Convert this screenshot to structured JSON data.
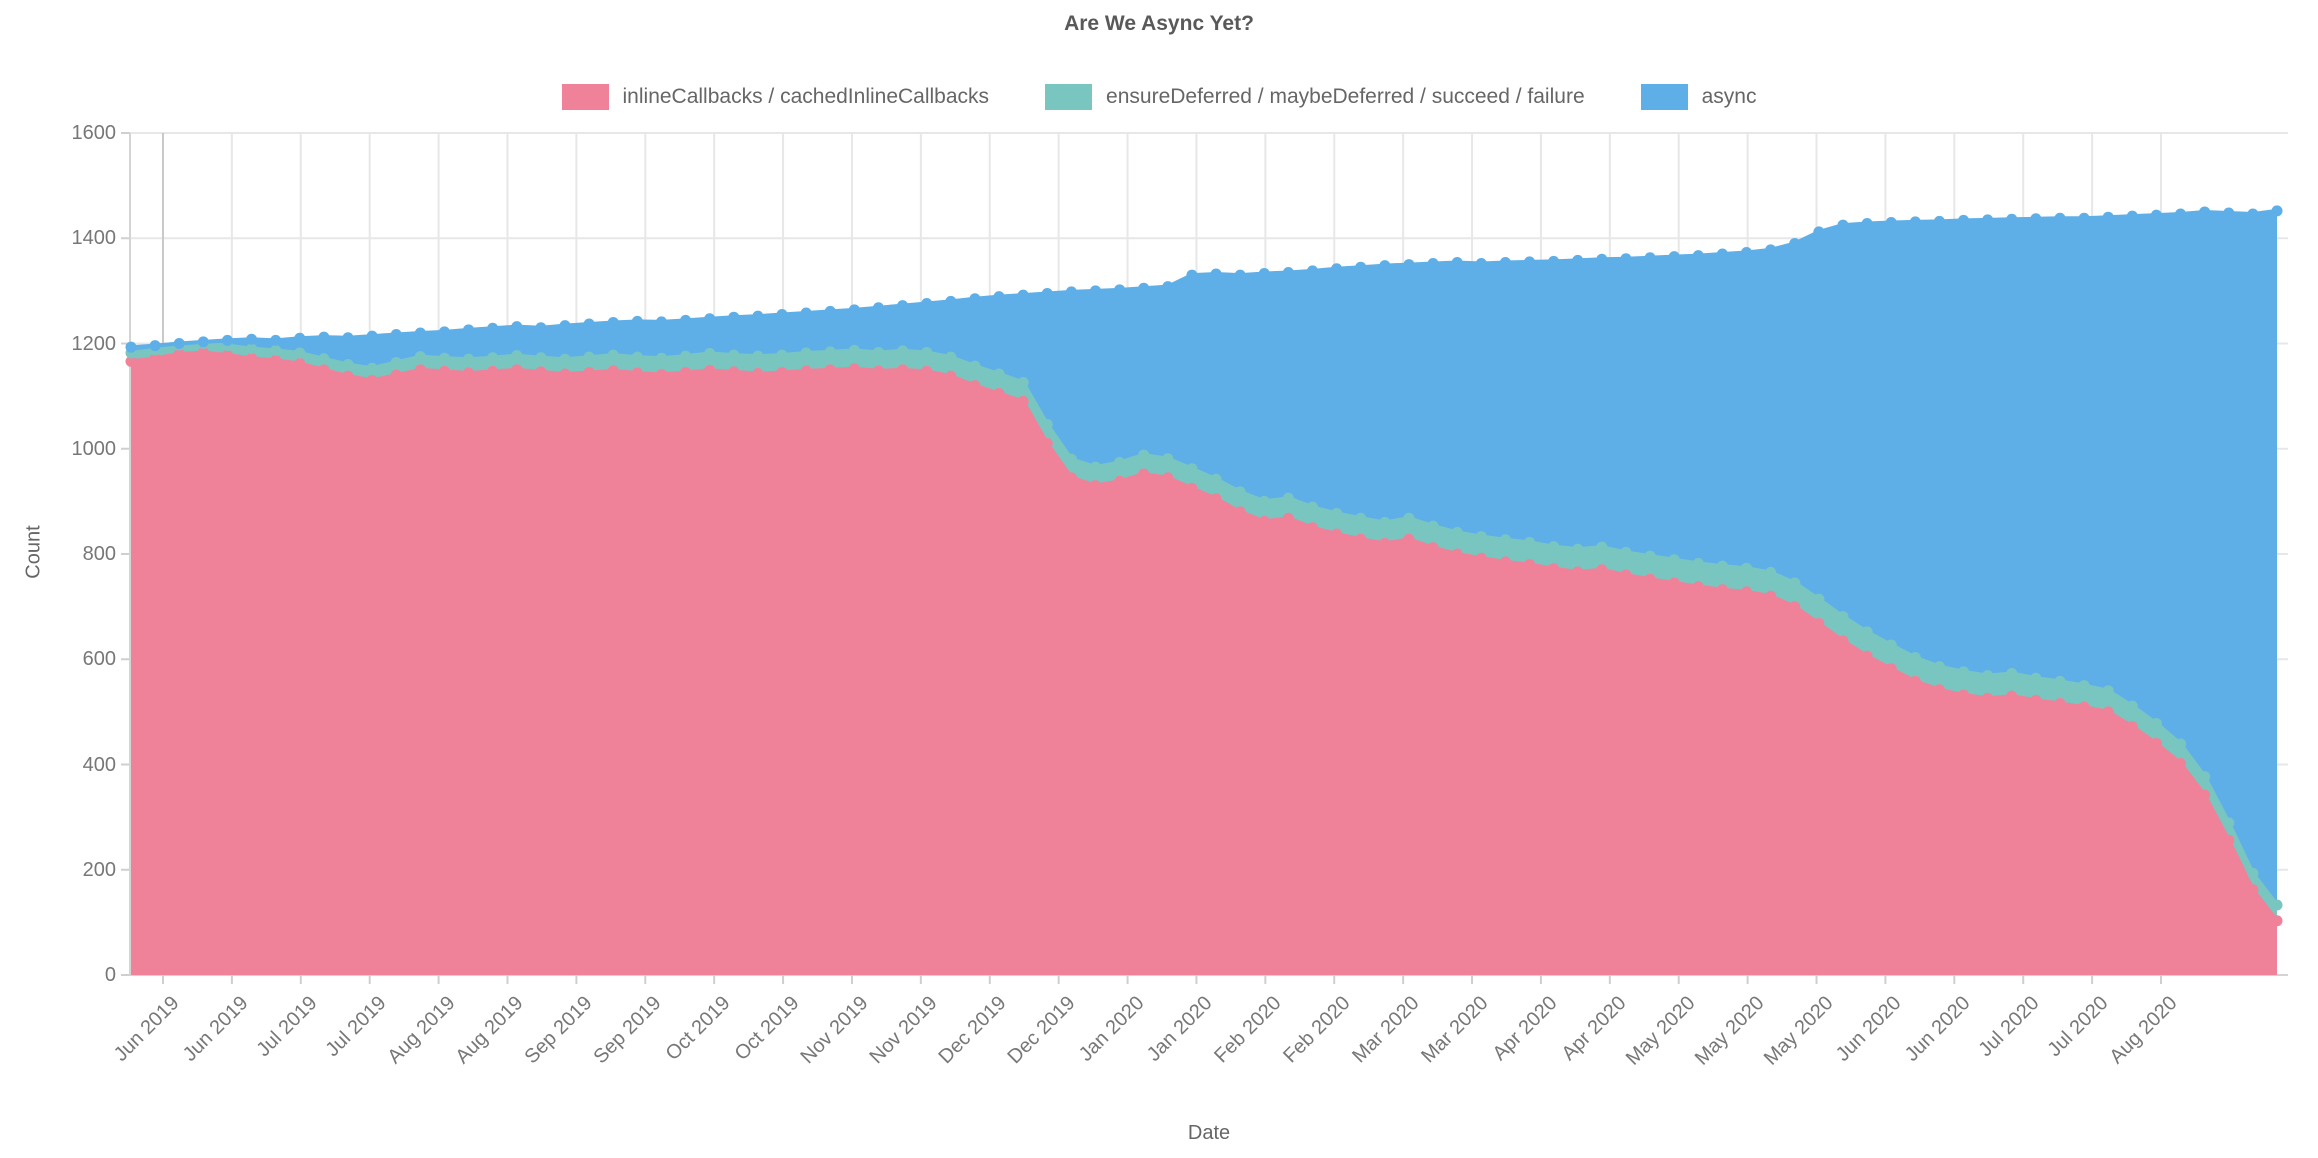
{
  "title": "Are We Async Yet?",
  "axes": {
    "x_title": "Date",
    "y_title": "Count"
  },
  "colors": {
    "inline_callbacks": "#EF8299",
    "deferred": "#79C6C0",
    "async": "#5EAFE8",
    "grid": "#E7E7E7",
    "first_gridline": "#C9C9C9",
    "axis_line": "#D4D4D4",
    "tick_mark": "#CFCFCF",
    "text": "#777777"
  },
  "legend": [
    {
      "label": "inlineCallbacks / cachedInlineCallbacks",
      "color": "#EF8299"
    },
    {
      "label": "ensureDeferred / maybeDeferred / succeed / failure",
      "color": "#79C6C0"
    },
    {
      "label": "async",
      "color": "#5EAFE8"
    }
  ],
  "chart_data": {
    "type": "area",
    "stacked": true,
    "title": "Are We Async Yet?",
    "xlabel": "Date",
    "ylabel": "Count",
    "ylim": [
      0,
      1600
    ],
    "grid": true,
    "legend_position": "top",
    "point_markers": true,
    "y_ticks": [
      0,
      200,
      400,
      600,
      800,
      1000,
      1200,
      1400,
      1600
    ],
    "x_tick_labels": [
      "Jun 2019",
      "Jun 2019",
      "Jul 2019",
      "Jul 2019",
      "Aug 2019",
      "Aug 2019",
      "Sep 2019",
      "Sep 2019",
      "Oct 2019",
      "Oct 2019",
      "Nov 2019",
      "Nov 2019",
      "Dec 2019",
      "Dec 2019",
      "Jan 2020",
      "Jan 2020",
      "Feb 2020",
      "Feb 2020",
      "Mar 2020",
      "Mar 2020",
      "Apr 2020",
      "Apr 2020",
      "May 2020",
      "May 2020",
      "May 2020",
      "Jun 2020",
      "Jun 2020",
      "Jul 2020",
      "Jul 2020",
      "Aug 2020"
    ],
    "series": [
      {
        "name": "inlineCallbacks / cachedInlineCallbacks",
        "color": "#EF8299",
        "values": [
          1166,
          1172,
          1180,
          1183,
          1178,
          1172,
          1168,
          1162,
          1150,
          1138,
          1130,
          1140,
          1150,
          1147,
          1144,
          1147,
          1150,
          1146,
          1142,
          1145,
          1148,
          1144,
          1141,
          1145,
          1149,
          1146,
          1143,
          1145,
          1148,
          1150,
          1152,
          1148,
          1150,
          1147,
          1138,
          1120,
          1105,
          1090,
          1010,
          945,
          930,
          938,
          952,
          945,
          925,
          905,
          880,
          862,
          868,
          850,
          838,
          828,
          820,
          828,
          812,
          800,
          792,
          785,
          780,
          772,
          766,
          770,
          760,
          752,
          745,
          738,
          732,
          728,
          720,
          700,
          668,
          635,
          606,
          582,
          558,
          542,
          532,
          526,
          530,
          522,
          516,
          509,
          500,
          472,
          440,
          402,
          342,
          256,
          162,
          103
        ]
      },
      {
        "name": "ensureDeferred / maybeDeferred / succeed / failure",
        "color": "#79C6C0",
        "values": [
          16,
          16,
          17,
          17,
          18,
          18,
          19,
          20,
          21,
          22,
          23,
          24,
          25,
          25,
          26,
          26,
          27,
          27,
          28,
          29,
          30,
          30,
          31,
          31,
          32,
          32,
          33,
          33,
          34,
          34,
          35,
          35,
          36,
          36,
          36,
          37,
          37,
          36,
          36,
          35,
          35,
          36,
          36,
          36,
          37,
          37,
          38,
          38,
          38,
          39,
          39,
          40,
          40,
          40,
          41,
          41,
          41,
          42,
          42,
          42,
          43,
          43,
          43,
          44,
          44,
          44,
          45,
          45,
          45,
          45,
          46,
          46,
          46,
          45,
          45,
          44,
          44,
          43,
          43,
          42,
          42,
          41,
          40,
          39,
          38,
          37,
          35,
          33,
          31,
          30
        ]
      },
      {
        "name": "async",
        "color": "#5EAFE8",
        "values": [
          11,
          8,
          3,
          3,
          10,
          18,
          19,
          28,
          41,
          51,
          61,
          53,
          45,
          50,
          56,
          56,
          55,
          57,
          64,
          63,
          62,
          68,
          69,
          68,
          66,
          72,
          76,
          77,
          76,
          77,
          77,
          85,
          86,
          93,
          106,
          128,
          147,
          166,
          249,
          318,
          335,
          328,
          317,
          327,
          368,
          390,
          412,
          433,
          429,
          449,
          465,
          477,
          488,
          482,
          499,
          513,
          519,
          527,
          533,
          542,
          549,
          547,
          558,
          567,
          576,
          585,
          593,
          600,
          613,
          645,
          698,
          744,
          776,
          803,
          828,
          846,
          858,
          866,
          863,
          873,
          880,
          888,
          900,
          931,
          966,
          1007,
          1073,
          1159,
          1253,
          1319
        ]
      }
    ]
  }
}
